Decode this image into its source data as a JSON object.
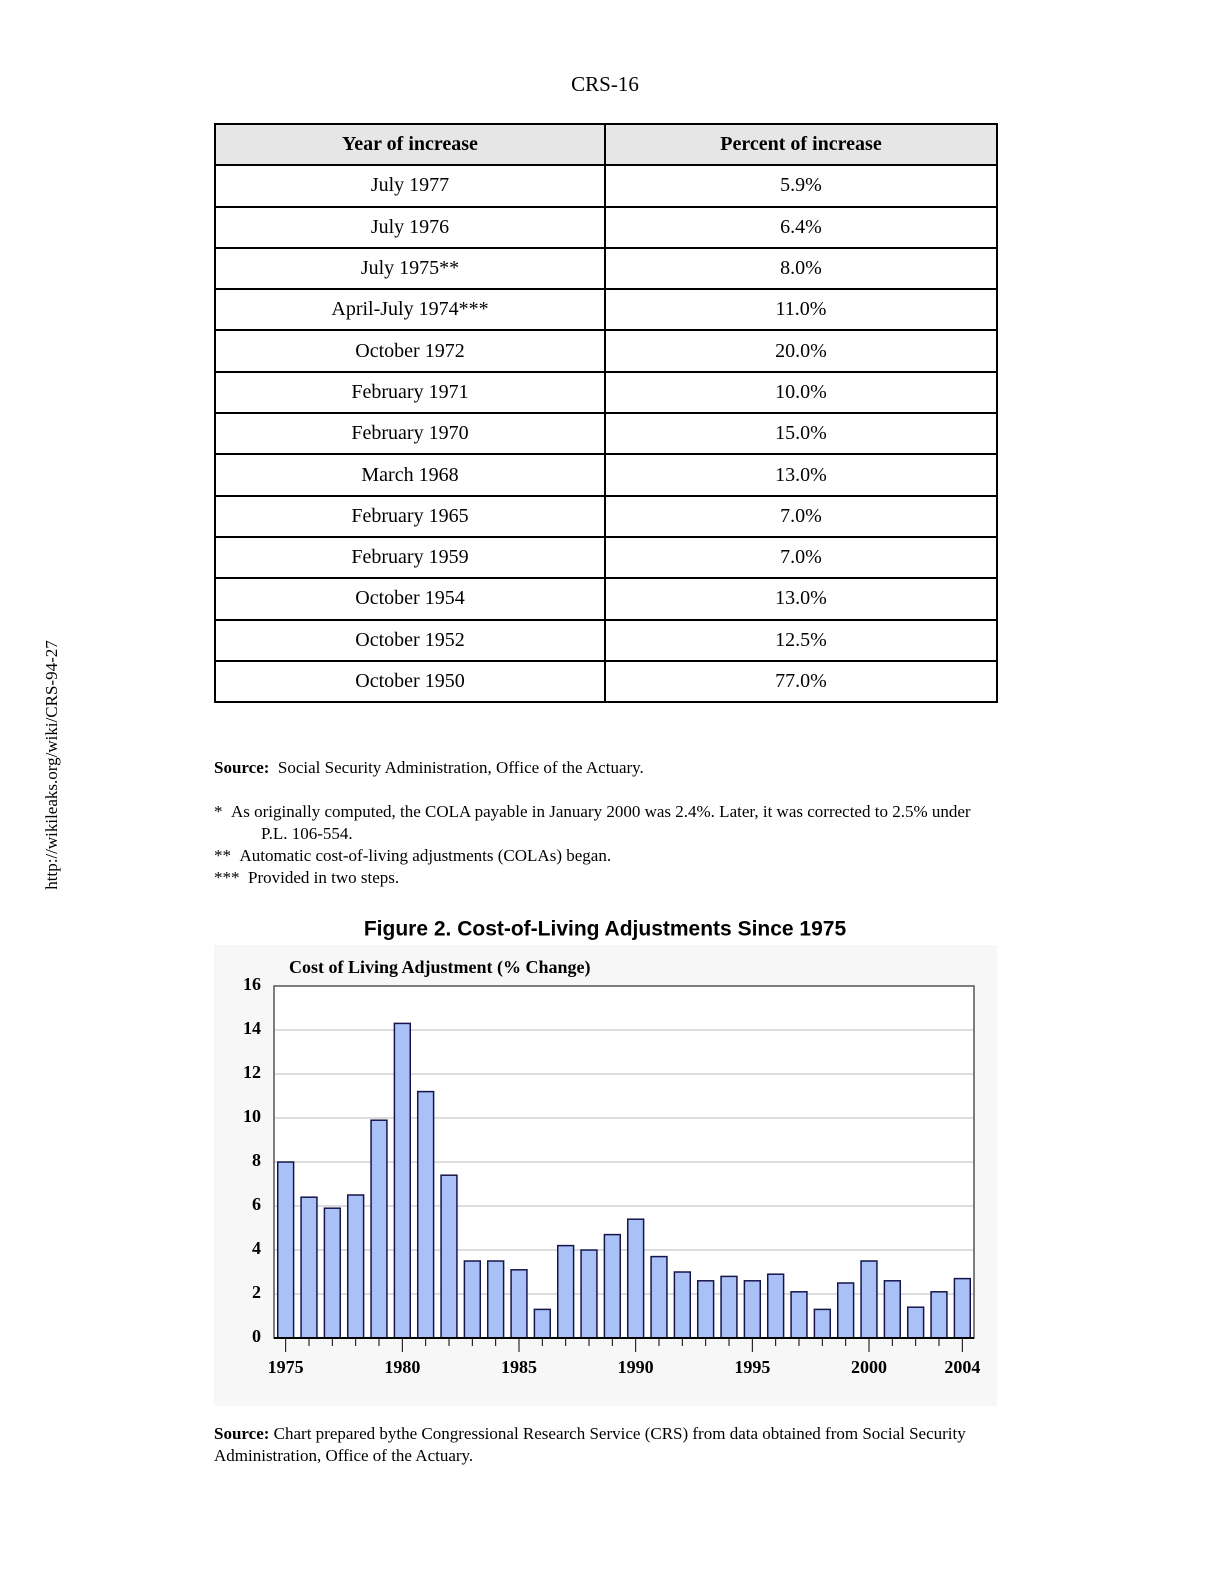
{
  "header": "CRS-16",
  "side_url": "http://wikileaks.org/wiki/CRS-94-27",
  "table": {
    "columns": [
      "Year of increase",
      "Percent of increase"
    ],
    "rows": [
      [
        "July 1977",
        "5.9%"
      ],
      [
        "July 1976",
        "6.4%"
      ],
      [
        "July 1975**",
        "8.0%"
      ],
      [
        "April-July 1974***",
        "11.0%"
      ],
      [
        "October 1972",
        "20.0%"
      ],
      [
        "February 1971",
        "10.0%"
      ],
      [
        "February 1970",
        "15.0%"
      ],
      [
        "March 1968",
        "13.0%"
      ],
      [
        "February 1965",
        "7.0%"
      ],
      [
        "February 1959",
        "7.0%"
      ],
      [
        "October 1954",
        "13.0%"
      ],
      [
        "October 1952",
        "12.5%"
      ],
      [
        "October 1950",
        "77.0%"
      ]
    ]
  },
  "source": {
    "label": "Source:",
    "text": "Social Security Administration, Office of the Actuary."
  },
  "footnotes": [
    {
      "marker": "*",
      "text": "As originally computed, the COLA payable in January 2000 was 2.4%.  Later, it was corrected to 2.5% under P.L. 106-554."
    },
    {
      "marker": "**",
      "text": "Automatic cost-of-living adjustments (COLAs) began."
    },
    {
      "marker": "***",
      "text": "Provided in two steps."
    }
  ],
  "chart_data": {
    "type": "bar",
    "title": "Figure 2. Cost-of-Living Adjustments Since 1975",
    "subtitle": "Cost of Living Adjustment (% Change)",
    "categories": [
      "1975",
      null,
      null,
      null,
      null,
      "1980",
      null,
      null,
      null,
      null,
      "1985",
      null,
      null,
      null,
      null,
      "1990",
      null,
      null,
      null,
      null,
      "1995",
      null,
      null,
      null,
      null,
      "2000",
      null,
      null,
      null,
      "2004"
    ],
    "values": [
      8.0,
      6.4,
      5.9,
      6.5,
      9.9,
      14.3,
      11.2,
      7.4,
      3.5,
      3.5,
      3.1,
      1.3,
      4.2,
      4.0,
      4.7,
      5.4,
      3.7,
      3.0,
      2.6,
      2.8,
      2.6,
      2.9,
      2.1,
      1.3,
      2.5,
      3.5,
      2.6,
      1.4,
      2.1,
      2.7
    ],
    "color": "#a9c1f7",
    "ylim": [
      0,
      16
    ],
    "yticks": [
      0,
      2,
      4,
      6,
      8,
      10,
      12,
      14,
      16
    ],
    "grid": true
  },
  "figure_source": {
    "label": "Source:",
    "text": "Chart prepared bythe Congressional Research Service (CRS) from data obtained from Social Security Administration, Office of the Actuary."
  }
}
